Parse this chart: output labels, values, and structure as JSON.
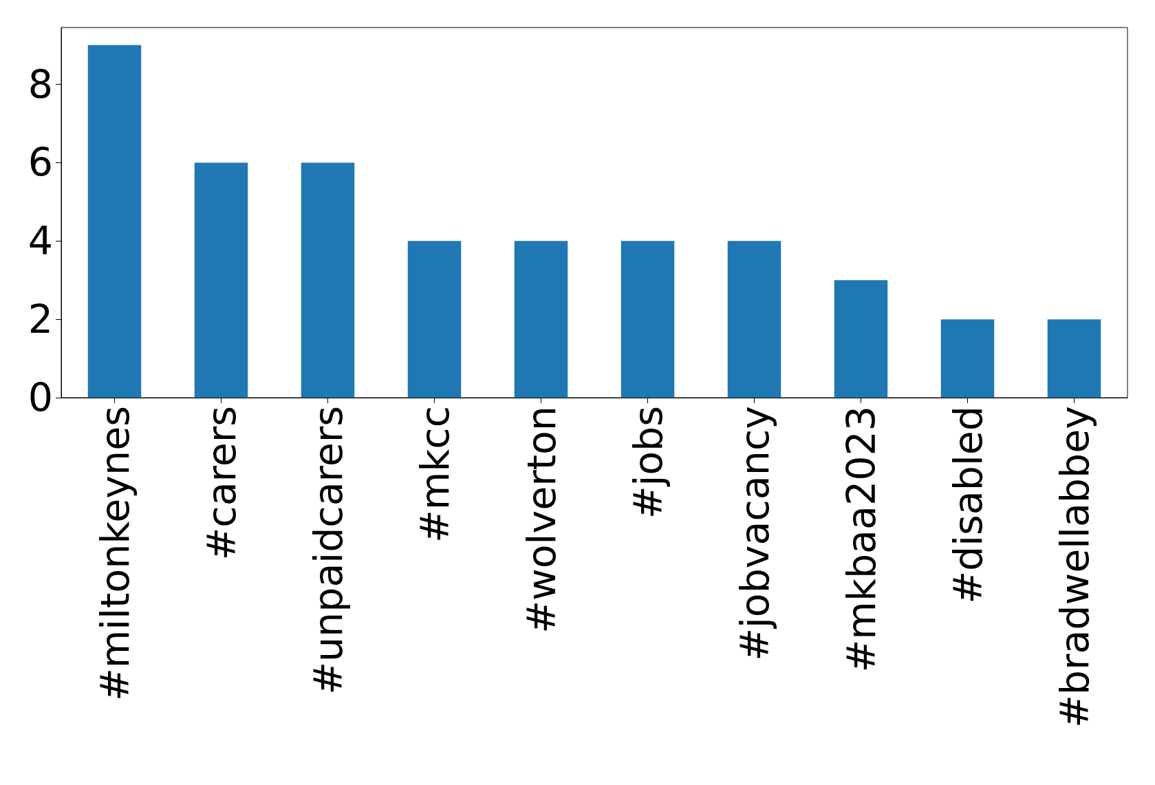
{
  "chart_data": {
    "type": "bar",
    "categories": [
      "#miltonkeynes",
      "#carers",
      "#unpaidcarers",
      "#mkcc",
      "#wolverton",
      "#jobs",
      "#jobvacancy",
      "#mkbaa2023",
      "#disabled",
      "#bradwellabbey"
    ],
    "values": [
      9,
      6,
      6,
      4,
      4,
      4,
      4,
      3,
      2,
      2
    ],
    "color": "#1f77b4",
    "ylim": [
      0,
      9.45
    ],
    "yticks": [
      0,
      2,
      4,
      6,
      8
    ],
    "grid": false
  }
}
